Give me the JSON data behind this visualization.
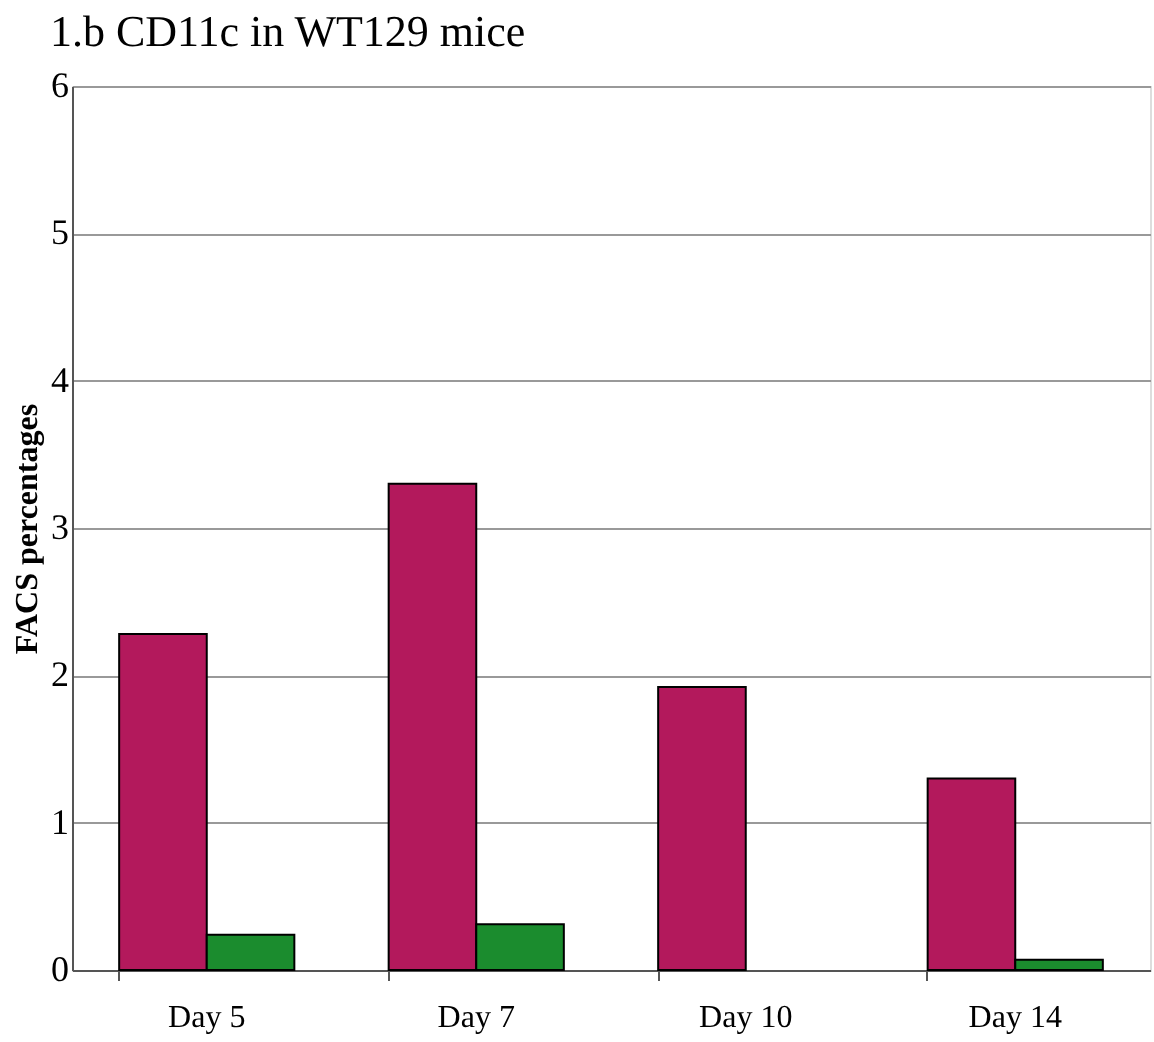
{
  "chart_data": {
    "type": "bar",
    "title": "1.b    CD11c in  WT129 mice",
    "ylabel": "FACS percentages",
    "categories": [
      "Day 5",
      "Day 7",
      "Day 10",
      "Day 14"
    ],
    "series": [
      {
        "color": "#b3195c",
        "values": [
          2.28,
          3.3,
          1.92,
          1.3
        ]
      },
      {
        "color": "#1b8c2e",
        "values": [
          0.24,
          0.31,
          null,
          0.07
        ]
      }
    ],
    "ylim": [
      0,
      6
    ],
    "yticks": [
      0,
      1,
      2,
      3,
      4,
      5,
      6
    ],
    "grid": "y"
  }
}
